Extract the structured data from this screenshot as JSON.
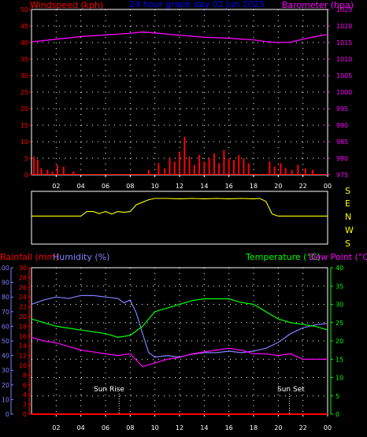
{
  "header": {
    "left_label": "Windspeed (kph)",
    "center_title": "24 hour graph day 02 Jun 2025",
    "right_label": "Barometer (hpa)"
  },
  "bottom_header": {
    "rainfall_label": "Rainfall (mm)",
    "humidity_label": "Humidity (%)",
    "temp_label": "Temperature (°C)",
    "dew_label": "Dew Point (°C)"
  },
  "direction_labels": [
    "S",
    "E",
    "N",
    "W",
    "S"
  ],
  "sun": {
    "rise_label": "Sun Rise",
    "set_label": "Sun Set"
  },
  "colors": {
    "windspeed": "#ff0000",
    "barometer": "#ff00ff",
    "direction": "#ffff00",
    "humidity": "#8080ff",
    "temperature": "#00ff00",
    "dewpoint": "#ff00ff",
    "rainfall": "#ff0000",
    "title": "#0000ff",
    "grid": "#ffffff"
  },
  "chart_data": [
    {
      "type": "line",
      "title": "24 hour graph day 02 Jun 2025",
      "xlabel": "",
      "x_ticks": [
        "02",
        "04",
        "06",
        "08",
        "10",
        "12",
        "14",
        "16",
        "18",
        "20",
        "22",
        "00"
      ],
      "ylabel": "Windspeed (kph)",
      "ylim": [
        0,
        50
      ],
      "y_ticks": [
        0,
        5,
        10,
        15,
        20,
        25,
        30,
        35,
        40,
        45,
        50
      ],
      "y2label": "Barometer (hpa)",
      "y2lim": [
        975,
        1025
      ],
      "y2_ticks": [
        975,
        980,
        985,
        990,
        995,
        1000,
        1005,
        1010,
        1015,
        1020,
        1025
      ],
      "grid": true,
      "series": [
        {
          "name": "Barometer (hpa)",
          "axis": "right",
          "x": [
            0,
            2,
            4,
            6,
            8,
            9,
            10,
            12,
            14,
            16,
            18,
            19,
            20,
            21,
            22,
            23,
            24
          ],
          "y": [
            1015.2,
            1016.0,
            1016.8,
            1017.3,
            1017.8,
            1018.2,
            1017.9,
            1017.2,
            1016.6,
            1016.3,
            1015.8,
            1015.3,
            1015.0,
            1015.1,
            1016.0,
            1016.8,
            1017.4
          ]
        },
        {
          "name": "Windspeed (kph)",
          "axis": "left",
          "type": "bar",
          "x": [
            0.2,
            0.5,
            0.8,
            1.3,
            1.7,
            2.1,
            2.6,
            3.4,
            9.5,
            10.3,
            10.8,
            11.2,
            11.6,
            12.0,
            12.4,
            12.8,
            13.2,
            13.6,
            14.0,
            14.4,
            14.8,
            15.2,
            15.6,
            16.0,
            16.4,
            16.8,
            17.2,
            17.6,
            19.3,
            19.7,
            20.2,
            20.6,
            21.1,
            21.6,
            22.2,
            22.8
          ],
          "y": [
            5.5,
            4.5,
            2.0,
            1.5,
            1.0,
            3.0,
            2.5,
            1.0,
            1.5,
            3.5,
            2.0,
            5.0,
            4.0,
            7.0,
            11.5,
            5.5,
            3.0,
            6.0,
            4.0,
            5.0,
            6.5,
            3.5,
            7.5,
            5.0,
            4.5,
            6.0,
            5.0,
            3.5,
            4.0,
            2.5,
            3.5,
            2.0,
            1.5,
            3.0,
            2.0,
            1.5
          ]
        }
      ]
    },
    {
      "type": "line",
      "title": "",
      "x_ticks": [],
      "ylim": [
        0,
        360
      ],
      "y_tick_labels": [
        "S",
        "E",
        "N",
        "W",
        "S"
      ],
      "series": [
        {
          "name": "Wind Direction",
          "x": [
            0,
            2,
            4,
            4.5,
            5,
            5.5,
            6,
            6.5,
            7,
            7.5,
            8,
            8.5,
            9,
            9.5,
            10,
            11,
            12,
            13,
            14,
            15,
            16,
            17,
            18,
            18.5,
            19,
            19.5,
            20,
            21,
            22,
            23,
            24
          ],
          "y": [
            5,
            5,
            5,
            60,
            60,
            35,
            60,
            30,
            60,
            50,
            60,
            140,
            170,
            200,
            215,
            215,
            210,
            215,
            210,
            215,
            210,
            215,
            210,
            215,
            180,
            30,
            5,
            5,
            5,
            5,
            5
          ]
        }
      ]
    },
    {
      "type": "line",
      "title": "",
      "x_ticks": [
        "02",
        "04",
        "06",
        "08",
        "10",
        "12",
        "14",
        "16",
        "18",
        "20",
        "22",
        "00"
      ],
      "ylabel": "Rainfall (mm)",
      "ylim": [
        0,
        30
      ],
      "y_ticks": [
        0,
        2,
        4,
        6,
        8,
        10,
        12,
        14,
        16,
        18,
        20,
        22,
        24,
        26,
        28,
        30
      ],
      "humidity_ylabel": "Humidity (%)",
      "humidity_ylim": [
        0,
        100
      ],
      "humidity_ticks": [
        0,
        10,
        20,
        30,
        40,
        50,
        60,
        70,
        80,
        90,
        100
      ],
      "y2label": "Temperature (°C)",
      "y2lim": [
        0,
        40
      ],
      "y2_ticks": [
        0,
        5,
        10,
        15,
        20,
        25,
        30,
        35,
        40
      ],
      "grid": true,
      "annotations": [
        "Sun Rise",
        "Sun Set"
      ],
      "sun_rise_hour": 7.1,
      "sun_set_hour": 20.9,
      "series": [
        {
          "name": "Humidity (%)",
          "axis": "humidity",
          "x": [
            0,
            1,
            2,
            3,
            4,
            5,
            6,
            7,
            7.5,
            8,
            8.5,
            9,
            9.5,
            10,
            11,
            12,
            13,
            14,
            15,
            16,
            17,
            18,
            19,
            20,
            21,
            22,
            23,
            24
          ],
          "y": [
            75,
            78,
            80,
            79,
            81,
            81,
            80,
            79,
            76,
            78,
            69,
            55,
            42,
            39,
            40,
            39,
            41,
            42,
            42,
            43,
            42,
            43,
            45,
            49,
            55,
            59,
            61,
            62
          ]
        },
        {
          "name": "Temperature (°C)",
          "axis": "right",
          "x": [
            0,
            1,
            2,
            3,
            4,
            5,
            6,
            7,
            8,
            9,
            10,
            11,
            12,
            13,
            14,
            15,
            16,
            17,
            18,
            19,
            20,
            21,
            22,
            23,
            24
          ],
          "y": [
            26,
            25,
            24,
            23.5,
            23,
            22.5,
            22,
            21,
            21.5,
            24,
            28,
            29,
            30,
            31,
            31.5,
            31.5,
            31.5,
            30.5,
            30,
            28,
            26,
            25,
            24.5,
            24,
            23
          ]
        },
        {
          "name": "Dew Point (°C)",
          "axis": "right",
          "x": [
            0,
            1,
            2,
            3,
            4,
            5,
            6,
            7,
            8,
            9,
            10,
            11,
            12,
            13,
            14,
            15,
            16,
            17,
            18,
            19,
            20,
            21,
            22,
            23,
            24
          ],
          "y": [
            21,
            20,
            19.5,
            18.5,
            17.5,
            17,
            16.5,
            16,
            16.5,
            13,
            14,
            15,
            15.5,
            16.5,
            17,
            17.5,
            18,
            17.5,
            16.5,
            16.5,
            16,
            16.5,
            15,
            15,
            15
          ]
        },
        {
          "name": "Rainfall (mm)",
          "axis": "left",
          "x": [
            0,
            24
          ],
          "y": [
            0,
            0
          ]
        }
      ]
    }
  ]
}
